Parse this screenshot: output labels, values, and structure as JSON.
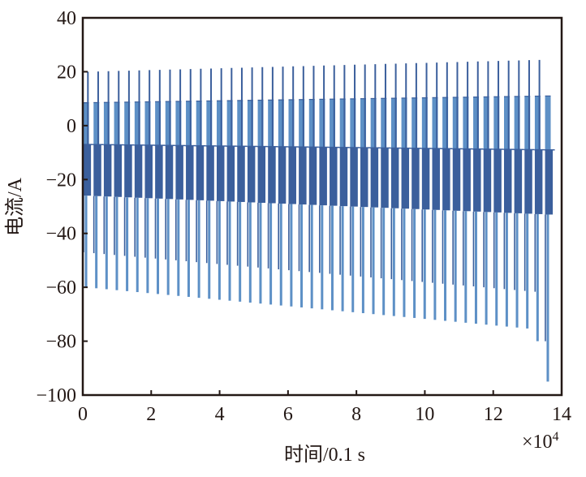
{
  "chart_data": {
    "type": "line",
    "title": "",
    "xlabel": "时间/0.1 s",
    "ylabel": "电流/A",
    "x_multiplier": "×10",
    "x_multiplier_exp": "4",
    "xlim": [
      0,
      14
    ],
    "ylim": [
      -100,
      40
    ],
    "xticks": [
      0,
      2,
      4,
      6,
      8,
      10,
      12,
      14
    ],
    "yticks": [
      40,
      20,
      0,
      -20,
      -40,
      -60,
      -80,
      -100
    ],
    "xtick_labels": [
      "0",
      "2",
      "4",
      "6",
      "8",
      "10",
      "12",
      "14"
    ],
    "ytick_labels": [
      "40",
      "20",
      "0",
      "−20",
      "−40",
      "−60",
      "−80",
      "−100"
    ],
    "grid": false,
    "series": [
      {
        "name": "current",
        "color_dark": "#3b5f9c",
        "color_light": "#5d90c6",
        "pattern": "periodic pulse",
        "first_cycle_x": 0.15,
        "period": 0.3,
        "cycles": 46,
        "peak_max": [
          20,
          24.5
        ],
        "upper_plateau": [
          8.5,
          11
        ],
        "mid_level": [
          -7,
          -9
        ],
        "lower_plateau": [
          -26,
          -33
        ],
        "first_trough": [
          -47,
          -62
        ],
        "peak_min": [
          -60,
          -76
        ],
        "final_troughs": [
          -80,
          -95
        ]
      }
    ]
  }
}
